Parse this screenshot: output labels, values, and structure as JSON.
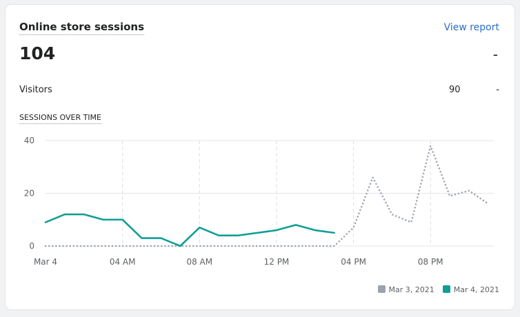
{
  "header": {
    "title": "Online store sessions",
    "link": "View report"
  },
  "summary": {
    "total": "104",
    "total_change": "-",
    "visitors_label": "Visitors",
    "visitors_value": "90",
    "visitors_change": "-"
  },
  "chart_data": {
    "type": "line",
    "title": "SESSIONS OVER TIME",
    "categories": [
      "Mar 4",
      null,
      null,
      null,
      "04 AM",
      null,
      null,
      null,
      "08 AM",
      null,
      null,
      null,
      "12 PM",
      null,
      null,
      null,
      "04 PM",
      null,
      null,
      null,
      "08 PM",
      null,
      null,
      null
    ],
    "series": [
      {
        "name": "Mar 3, 2021",
        "color": "#9ca3ae",
        "line_style": "dotted",
        "values": [
          0,
          0,
          0,
          0,
          0,
          0,
          0,
          0,
          0,
          0,
          0,
          0,
          0,
          0,
          0,
          0,
          7,
          26,
          12,
          9,
          38,
          19,
          21,
          16
        ]
      },
      {
        "name": "Mar 4, 2021",
        "color": "#109e96",
        "line_style": "solid",
        "values": [
          9,
          12,
          12,
          10,
          10,
          3,
          3,
          0,
          7,
          4,
          4,
          5,
          6,
          8,
          6,
          5,
          null,
          null,
          null,
          null,
          null,
          null,
          null,
          null
        ]
      }
    ],
    "ylim": [
      0,
      40
    ],
    "yticks": [
      0,
      20,
      40
    ],
    "grid": true,
    "legend": "bottom-right"
  }
}
